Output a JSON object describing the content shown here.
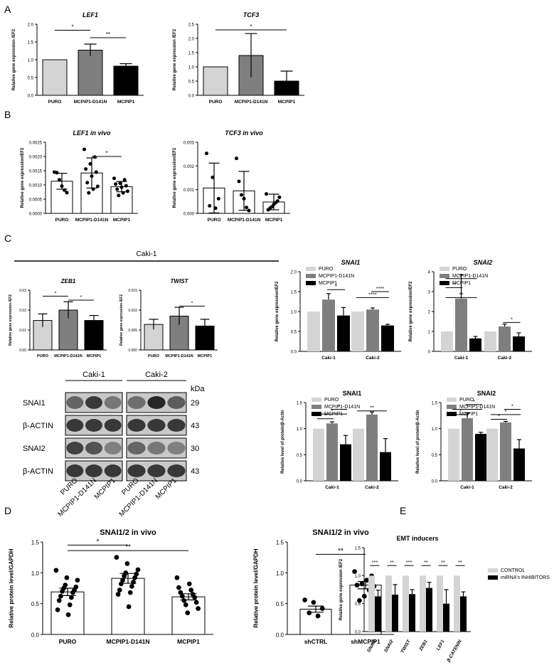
{
  "panel_labels": [
    "A",
    "B",
    "C",
    "D",
    "E"
  ],
  "blot": {
    "cell_lines": [
      "Caki-1",
      "Caki-2"
    ],
    "rows": [
      "SNAI1",
      "β-ACTIN",
      "SNAI2",
      "β-ACTIN"
    ],
    "kda_header": "kDa",
    "kda": [
      "29",
      "43",
      "30",
      "43"
    ],
    "lanes": [
      "PURO",
      "MCPIP1-D141N",
      "MCPIP1",
      "PURO",
      "MCPIP1-D141N",
      "MCPIP1"
    ]
  },
  "caki_header": "Caki-1",
  "colors": {
    "light": "#d4d4d4",
    "mid": "#7f7f7f",
    "dark": "#000000",
    "open": "#ffffff"
  },
  "chart_data": [
    {
      "id": "A1",
      "type": "bar",
      "title": "LEF1",
      "ylabel": "Relative gene expression /EF2",
      "ylim": [
        0,
        2.0
      ],
      "yticks": [
        "0.0",
        "0.5",
        "1.0",
        "1.5",
        "2.0"
      ],
      "categories": [
        "PURO",
        "MCPIP1-D141N",
        "MCPIP1"
      ],
      "values": [
        1.0,
        1.27,
        0.82
      ],
      "errors": [
        0,
        0.17,
        0.07
      ],
      "sig": [
        {
          "label": "*"
        },
        {
          "label": "**"
        }
      ]
    },
    {
      "id": "A2",
      "type": "bar",
      "title": "TCF3",
      "ylabel": "Relative gene expression /EF2",
      "ylim": [
        0,
        2.5
      ],
      "yticks": [
        "0.0",
        "0.5",
        "1.0",
        "1.5",
        "2.0",
        "2.5"
      ],
      "categories": [
        "PURO",
        "MCPIP1-D141N",
        "MCPIP1"
      ],
      "values": [
        1.0,
        1.4,
        0.5
      ],
      "errors": [
        0,
        0.77,
        0.35
      ],
      "sig": [
        {
          "label": "*"
        }
      ]
    },
    {
      "id": "B1",
      "type": "bar",
      "title": "LEF1 in vivo",
      "ylabel": "Relative gene expression/EF2",
      "ylim": [
        0,
        0.0025
      ],
      "yticks": [
        "0.0000",
        "0.0005",
        "0.0010",
        "0.0015",
        "0.0020",
        "0.0025"
      ],
      "categories": [
        "PURO",
        "MCPIP1-D141N",
        "MCPIP1"
      ],
      "values": [
        0.00113,
        0.00142,
        0.00094
      ],
      "errors": [
        0.00028,
        0.00053,
        0.00018
      ],
      "points": [
        [
          0.00145,
          0.00143,
          0.00118,
          0.00096,
          0.00082,
          0.00073
        ],
        [
          0.00225,
          0.00198,
          0.00174,
          0.00156,
          0.00145,
          0.00131,
          0.00108,
          0.00095,
          0.00085,
          0.00072
        ],
        [
          0.00123,
          0.00118,
          0.00106,
          0.00103,
          0.00097,
          0.00092,
          0.00085,
          0.00078,
          0.00072,
          0.00063
        ]
      ],
      "sig": [
        {
          "label": "*"
        }
      ]
    },
    {
      "id": "B2",
      "type": "bar",
      "title": "TCF3 in vivo",
      "ylabel": "Relative gene expression/EF2",
      "ylim": [
        0,
        0.003
      ],
      "yticks": [
        "0.000",
        "0.001",
        "0.002",
        "0.003"
      ],
      "categories": [
        "PURO",
        "MCPIP1-D141N",
        "MCPIP1"
      ],
      "values": [
        0.00107,
        0.00095,
        0.00048
      ],
      "errors": [
        0.00105,
        0.00082,
        0.00033
      ],
      "points": [
        [
          0.00253,
          0.00152,
          0.00062,
          0.00032,
          0.00022
        ],
        [
          0.00232,
          0.00135,
          0.00078,
          0.00062,
          0.00025,
          0.00012
        ],
        [
          0.00082,
          0.00068,
          0.00052,
          0.00045,
          0.00038,
          0.00028,
          0.00022,
          0.00015
        ]
      ],
      "sig": []
    },
    {
      "id": "C1",
      "type": "bar",
      "title": "ZEB1",
      "ylabel": "Relative gene expression /EF2",
      "ylim": [
        0,
        0.03
      ],
      "yticks": [
        "0.00",
        "0.01",
        "0.02",
        "0.03"
      ],
      "categories": [
        "PURO",
        "MCPIP1-D141N",
        "MCPIP1"
      ],
      "values": [
        0.0148,
        0.02,
        0.0148
      ],
      "errors": [
        0.0033,
        0.0042,
        0.0025
      ],
      "sig": [
        {
          "label": "*"
        },
        {
          "label": "*"
        }
      ]
    },
    {
      "id": "C2",
      "type": "bar",
      "title": "TWIST",
      "ylabel": "Relative gene expression /EF2",
      "ylim": [
        0,
        0.015
      ],
      "yticks": [
        "0.000",
        "0.005",
        "0.010",
        "0.015"
      ],
      "categories": [
        "PURO",
        "MCPIP1-D141N",
        "MCPIP1"
      ],
      "values": [
        0.0064,
        0.0085,
        0.006
      ],
      "errors": [
        0.0013,
        0.0022,
        0.0017
      ],
      "sig": [
        {
          "label": "*"
        }
      ]
    },
    {
      "id": "C3",
      "type": "bar",
      "title": "SNAI1",
      "ylabel": "Relative gene expression/EF2",
      "ylim": [
        0,
        2.0
      ],
      "yticks": [
        "0.0",
        "0.5",
        "1.0",
        "1.5",
        "2.0"
      ],
      "categories": [
        "Caki-1",
        "Caki-2"
      ],
      "legend": [
        "PURO",
        "MCPIP1-D141N",
        "MCPIP1"
      ],
      "series": [
        {
          "name": "PURO",
          "values": [
            1.0,
            1.0
          ],
          "errors": [
            0,
            0
          ]
        },
        {
          "name": "MCPIP1-D141N",
          "values": [
            1.3,
            1.05
          ],
          "errors": [
            0.15,
            0.04
          ]
        },
        {
          "name": "MCPIP1",
          "values": [
            0.9,
            0.65
          ],
          "errors": [
            0.2,
            0.03
          ]
        }
      ],
      "sig": [
        {
          "label": "*"
        },
        {
          "label": "****"
        },
        {
          "label": "****"
        }
      ]
    },
    {
      "id": "C4",
      "type": "bar",
      "title": "SNAI2",
      "ylabel": "Relative gene expression/EF2",
      "ylim": [
        0,
        4
      ],
      "yticks": [
        "0",
        "1",
        "2",
        "3",
        "4"
      ],
      "categories": [
        "Caki-1",
        "Caki-2"
      ],
      "legend": [
        "PURO",
        "MCPIP1-D141N",
        "MCPIP1"
      ],
      "series": [
        {
          "name": "PURO",
          "values": [
            1.0,
            1.0
          ],
          "errors": [
            0,
            0
          ]
        },
        {
          "name": "MCPIP1-D141N",
          "values": [
            2.65,
            1.25
          ],
          "errors": [
            1.2,
            0.12
          ]
        },
        {
          "name": "MCPIP1",
          "values": [
            0.65,
            0.75
          ],
          "errors": [
            0.1,
            0.18
          ]
        }
      ],
      "sig": [
        {
          "label": "*"
        },
        {
          "label": "**"
        },
        {
          "label": "**"
        },
        {
          "label": "*"
        }
      ]
    },
    {
      "id": "C5",
      "type": "bar",
      "title": "SNAI1",
      "ylabel": "Relative level of protein/β-Actin",
      "ylim": [
        0,
        1.5
      ],
      "yticks": [
        "0.0",
        "0.5",
        "1.0",
        "1.5"
      ],
      "categories": [
        "Caki-1",
        "Caki-2"
      ],
      "legend": [
        "PURO",
        "MCPIP1-D141N",
        "MCPIP1"
      ],
      "series": [
        {
          "name": "PURO",
          "values": [
            1.0,
            1.0
          ],
          "errors": [
            0,
            0
          ]
        },
        {
          "name": "MCPIP1-D141N",
          "values": [
            1.1,
            1.27
          ],
          "errors": [
            0.03,
            0.05
          ]
        },
        {
          "name": "MCPIP1",
          "values": [
            0.7,
            0.55
          ],
          "errors": [
            0.17,
            0.26
          ]
        }
      ],
      "sig": [
        {
          "label": "*"
        },
        {
          "label": "*"
        },
        {
          "label": "*"
        },
        {
          "label": "**"
        }
      ]
    },
    {
      "id": "C6",
      "type": "bar",
      "title": "SNAI2",
      "ylabel": "Relative level of protein/β-Actin",
      "ylim": [
        0,
        1.5
      ],
      "yticks": [
        "0.0",
        "0.5",
        "1.0",
        "1.5"
      ],
      "categories": [
        "Caki-1",
        "Caki-2"
      ],
      "legend": [
        "PURO",
        "MCPIP1-D141N",
        "MCPIP1"
      ],
      "series": [
        {
          "name": "PURO",
          "values": [
            1.0,
            1.0
          ],
          "errors": [
            0,
            0
          ]
        },
        {
          "name": "MCPIP1-D141N",
          "values": [
            1.2,
            1.12
          ],
          "errors": [
            0.1,
            0.02
          ]
        },
        {
          "name": "MCPIP1",
          "values": [
            0.9,
            0.62
          ],
          "errors": [
            0.03,
            0.17
          ]
        }
      ],
      "sig": [
        {
          "label": "*"
        },
        {
          "label": "*"
        },
        {
          "label": "*"
        },
        {
          "label": "*"
        },
        {
          "label": "*"
        },
        {
          "label": "*"
        }
      ]
    },
    {
      "id": "D1",
      "type": "bar",
      "title": "SNAI1/2 in vivo",
      "ylabel": "Relative protein level/GAPDH",
      "ylim": [
        0,
        1.5
      ],
      "yticks": [
        "0.0",
        "0.5",
        "1.0",
        "1.5"
      ],
      "categories": [
        "PURO",
        "MCPIP1-D141N",
        "MCPIP1"
      ],
      "values": [
        0.69,
        0.91,
        0.61
      ],
      "errors": [
        0.06,
        0.08,
        0.05
      ],
      "points": [
        [
          1.04,
          0.92,
          0.88,
          0.8,
          0.77,
          0.75,
          0.72,
          0.7,
          0.68,
          0.62,
          0.6,
          0.55,
          0.48,
          0.4,
          0.32
        ],
        [
          1.25,
          1.15,
          1.05,
          1.0,
          0.98,
          0.95,
          0.92,
          0.88,
          0.85,
          0.82,
          0.78,
          0.72,
          0.68,
          0.65,
          0.45
        ],
        [
          0.92,
          0.82,
          0.76,
          0.72,
          0.68,
          0.65,
          0.62,
          0.6,
          0.55,
          0.52,
          0.48,
          0.42,
          0.35
        ]
      ],
      "sig": [
        {
          "label": "*"
        },
        {
          "label": "**"
        }
      ]
    },
    {
      "id": "D2",
      "type": "bar",
      "title": "SNAI1/2 in vivo",
      "ylabel": "Relative protein level/GAPDH",
      "ylim": [
        0,
        1.5
      ],
      "yticks": [
        "0.0",
        "0.5",
        "1.0",
        "1.5"
      ],
      "categories": [
        "shCTRL",
        "shMCPIP1"
      ],
      "values": [
        0.41,
        0.8
      ],
      "errors": [
        0.05,
        0.06
      ],
      "points": [
        [
          0.56,
          0.52,
          0.42,
          0.35,
          0.3
        ],
        [
          1.02,
          0.95,
          0.88,
          0.82,
          0.8,
          0.78,
          0.72,
          0.62,
          0.55
        ]
      ],
      "sig": [
        {
          "label": "**"
        }
      ]
    },
    {
      "id": "E",
      "type": "bar",
      "title": "EMT inducers",
      "ylabel": "Relative gene expression /EF2",
      "ylim": [
        0,
        1.5
      ],
      "yticks": [
        "0.0",
        "0.5",
        "1.0",
        "1.5"
      ],
      "categories": [
        "SNAI1",
        "SNAI2",
        "TWIST",
        "ZEB1",
        "LEF1",
        "β-CATENIN"
      ],
      "legend": [
        "CONTROL",
        "miRNA's INHIBITORS"
      ],
      "series": [
        {
          "name": "CONTROL",
          "values": [
            1,
            1,
            1,
            1,
            1,
            1
          ],
          "errors": [
            0,
            0,
            0,
            0,
            0,
            0
          ]
        },
        {
          "name": "miRNA's INHIBITORS",
          "values": [
            0.63,
            0.66,
            0.67,
            0.78,
            0.5,
            0.63
          ],
          "errors": [
            0.11,
            0.18,
            0.08,
            0.1,
            0.25,
            0.08
          ]
        }
      ],
      "sig": [
        {
          "label": "***"
        },
        {
          "label": "**"
        },
        {
          "label": "***"
        },
        {
          "label": "**"
        },
        {
          "label": "**"
        },
        {
          "label": "**"
        }
      ]
    }
  ]
}
